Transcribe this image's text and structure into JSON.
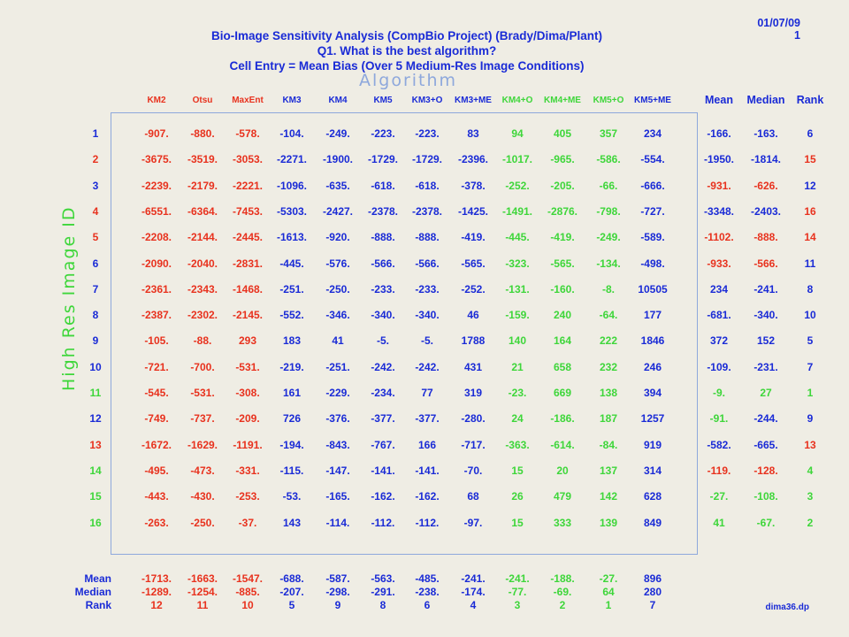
{
  "header": {
    "date": "01/07/09",
    "page": "1",
    "title_lines": [
      "Bio-Image Sensitivity Analysis (CompBio Project) (Brady/Dima/Plant)",
      "Q1. What is the best algorithm?",
      "Cell Entry = Mean Bias (Over 5 Medium-Res Image Conditions)"
    ],
    "top_axis": "Algorithm",
    "left_axis": "High Res Image ID"
  },
  "colors": {
    "blue": "#1a2bd6",
    "red": "#e8321e",
    "green": "#3ed63a",
    "frame": "#8ea8dc"
  },
  "columns": [
    {
      "label": "KM2",
      "color": "red"
    },
    {
      "label": "Otsu",
      "color": "red"
    },
    {
      "label": "MaxEnt",
      "color": "red"
    },
    {
      "label": "KM3",
      "color": "blue"
    },
    {
      "label": "KM4",
      "color": "blue"
    },
    {
      "label": "KM5",
      "color": "blue"
    },
    {
      "label": "KM3+O",
      "color": "blue"
    },
    {
      "label": "KM3+ME",
      "color": "blue"
    },
    {
      "label": "KM4+O",
      "color": "green"
    },
    {
      "label": "KM4+ME",
      "color": "green"
    },
    {
      "label": "KM5+O",
      "color": "green"
    },
    {
      "label": "KM5+ME",
      "color": "blue"
    }
  ],
  "summary_columns": [
    "Mean",
    "Median",
    "Rank"
  ],
  "rows": [
    {
      "id": "1",
      "id_color": "blue",
      "cells": [
        [
          "-907.",
          "red"
        ],
        [
          "-880.",
          "red"
        ],
        [
          "-578.",
          "red"
        ],
        [
          "-104.",
          "blue"
        ],
        [
          "-249.",
          "blue"
        ],
        [
          "-223.",
          "blue"
        ],
        [
          "-223.",
          "blue"
        ],
        [
          "83",
          "blue"
        ],
        [
          "94",
          "green"
        ],
        [
          "405",
          "green"
        ],
        [
          "357",
          "green"
        ],
        [
          "234",
          "blue"
        ]
      ],
      "mean": [
        "-166.",
        "blue"
      ],
      "median": [
        "-163.",
        "blue"
      ],
      "rank": [
        "6",
        "blue"
      ]
    },
    {
      "id": "2",
      "id_color": "red",
      "cells": [
        [
          "-3675.",
          "red"
        ],
        [
          "-3519.",
          "red"
        ],
        [
          "-3053.",
          "red"
        ],
        [
          "-2271.",
          "blue"
        ],
        [
          "-1900.",
          "blue"
        ],
        [
          "-1729.",
          "blue"
        ],
        [
          "-1729.",
          "blue"
        ],
        [
          "-2396.",
          "blue"
        ],
        [
          "-1017.",
          "green"
        ],
        [
          "-965.",
          "green"
        ],
        [
          "-586.",
          "green"
        ],
        [
          "-554.",
          "blue"
        ]
      ],
      "mean": [
        "-1950.",
        "blue"
      ],
      "median": [
        "-1814.",
        "blue"
      ],
      "rank": [
        "15",
        "red"
      ]
    },
    {
      "id": "3",
      "id_color": "blue",
      "cells": [
        [
          "-2239.",
          "red"
        ],
        [
          "-2179.",
          "red"
        ],
        [
          "-2221.",
          "red"
        ],
        [
          "-1096.",
          "blue"
        ],
        [
          "-635.",
          "blue"
        ],
        [
          "-618.",
          "blue"
        ],
        [
          "-618.",
          "blue"
        ],
        [
          "-378.",
          "blue"
        ],
        [
          "-252.",
          "green"
        ],
        [
          "-205.",
          "green"
        ],
        [
          "-66.",
          "green"
        ],
        [
          "-666.",
          "blue"
        ]
      ],
      "mean": [
        "-931.",
        "red"
      ],
      "median": [
        "-626.",
        "red"
      ],
      "rank": [
        "12",
        "blue"
      ]
    },
    {
      "id": "4",
      "id_color": "red",
      "cells": [
        [
          "-6551.",
          "red"
        ],
        [
          "-6364.",
          "red"
        ],
        [
          "-7453.",
          "red"
        ],
        [
          "-5303.",
          "blue"
        ],
        [
          "-2427.",
          "blue"
        ],
        [
          "-2378.",
          "blue"
        ],
        [
          "-2378.",
          "blue"
        ],
        [
          "-1425.",
          "blue"
        ],
        [
          "-1491.",
          "green"
        ],
        [
          "-2876.",
          "green"
        ],
        [
          "-798.",
          "green"
        ],
        [
          "-727.",
          "blue"
        ]
      ],
      "mean": [
        "-3348.",
        "blue"
      ],
      "median": [
        "-2403.",
        "blue"
      ],
      "rank": [
        "16",
        "red"
      ]
    },
    {
      "id": "5",
      "id_color": "red",
      "cells": [
        [
          "-2208.",
          "red"
        ],
        [
          "-2144.",
          "red"
        ],
        [
          "-2445.",
          "red"
        ],
        [
          "-1613.",
          "blue"
        ],
        [
          "-920.",
          "blue"
        ],
        [
          "-888.",
          "blue"
        ],
        [
          "-888.",
          "blue"
        ],
        [
          "-419.",
          "blue"
        ],
        [
          "-445.",
          "green"
        ],
        [
          "-419.",
          "green"
        ],
        [
          "-249.",
          "green"
        ],
        [
          "-589.",
          "blue"
        ]
      ],
      "mean": [
        "-1102.",
        "red"
      ],
      "median": [
        "-888.",
        "red"
      ],
      "rank": [
        "14",
        "red"
      ]
    },
    {
      "id": "6",
      "id_color": "blue",
      "cells": [
        [
          "-2090.",
          "red"
        ],
        [
          "-2040.",
          "red"
        ],
        [
          "-2831.",
          "red"
        ],
        [
          "-445.",
          "blue"
        ],
        [
          "-576.",
          "blue"
        ],
        [
          "-566.",
          "blue"
        ],
        [
          "-566.",
          "blue"
        ],
        [
          "-565.",
          "blue"
        ],
        [
          "-323.",
          "green"
        ],
        [
          "-565.",
          "green"
        ],
        [
          "-134.",
          "green"
        ],
        [
          "-498.",
          "blue"
        ]
      ],
      "mean": [
        "-933.",
        "red"
      ],
      "median": [
        "-566.",
        "red"
      ],
      "rank": [
        "11",
        "blue"
      ]
    },
    {
      "id": "7",
      "id_color": "blue",
      "cells": [
        [
          "-2361.",
          "red"
        ],
        [
          "-2343.",
          "red"
        ],
        [
          "-1468.",
          "red"
        ],
        [
          "-251.",
          "blue"
        ],
        [
          "-250.",
          "blue"
        ],
        [
          "-233.",
          "blue"
        ],
        [
          "-233.",
          "blue"
        ],
        [
          "-252.",
          "blue"
        ],
        [
          "-131.",
          "green"
        ],
        [
          "-160.",
          "green"
        ],
        [
          "-8.",
          "green"
        ],
        [
          "10505",
          "blue"
        ]
      ],
      "mean": [
        "234",
        "blue"
      ],
      "median": [
        "-241.",
        "blue"
      ],
      "rank": [
        "8",
        "blue"
      ]
    },
    {
      "id": "8",
      "id_color": "blue",
      "cells": [
        [
          "-2387.",
          "red"
        ],
        [
          "-2302.",
          "red"
        ],
        [
          "-2145.",
          "red"
        ],
        [
          "-552.",
          "blue"
        ],
        [
          "-346.",
          "blue"
        ],
        [
          "-340.",
          "blue"
        ],
        [
          "-340.",
          "blue"
        ],
        [
          "46",
          "blue"
        ],
        [
          "-159.",
          "green"
        ],
        [
          "240",
          "green"
        ],
        [
          "-64.",
          "green"
        ],
        [
          "177",
          "blue"
        ]
      ],
      "mean": [
        "-681.",
        "blue"
      ],
      "median": [
        "-340.",
        "blue"
      ],
      "rank": [
        "10",
        "blue"
      ]
    },
    {
      "id": "9",
      "id_color": "blue",
      "cells": [
        [
          "-105.",
          "red"
        ],
        [
          "-88.",
          "red"
        ],
        [
          "293",
          "red"
        ],
        [
          "183",
          "blue"
        ],
        [
          "41",
          "blue"
        ],
        [
          "-5.",
          "blue"
        ],
        [
          "-5.",
          "blue"
        ],
        [
          "1788",
          "blue"
        ],
        [
          "140",
          "green"
        ],
        [
          "164",
          "green"
        ],
        [
          "222",
          "green"
        ],
        [
          "1846",
          "blue"
        ]
      ],
      "mean": [
        "372",
        "blue"
      ],
      "median": [
        "152",
        "blue"
      ],
      "rank": [
        "5",
        "blue"
      ]
    },
    {
      "id": "10",
      "id_color": "blue",
      "cells": [
        [
          "-721.",
          "red"
        ],
        [
          "-700.",
          "red"
        ],
        [
          "-531.",
          "red"
        ],
        [
          "-219.",
          "blue"
        ],
        [
          "-251.",
          "blue"
        ],
        [
          "-242.",
          "blue"
        ],
        [
          "-242.",
          "blue"
        ],
        [
          "431",
          "blue"
        ],
        [
          "21",
          "green"
        ],
        [
          "658",
          "green"
        ],
        [
          "232",
          "green"
        ],
        [
          "246",
          "blue"
        ]
      ],
      "mean": [
        "-109.",
        "blue"
      ],
      "median": [
        "-231.",
        "blue"
      ],
      "rank": [
        "7",
        "blue"
      ]
    },
    {
      "id": "11",
      "id_color": "green",
      "cells": [
        [
          "-545.",
          "red"
        ],
        [
          "-531.",
          "red"
        ],
        [
          "-308.",
          "red"
        ],
        [
          "161",
          "blue"
        ],
        [
          "-229.",
          "blue"
        ],
        [
          "-234.",
          "blue"
        ],
        [
          "77",
          "blue"
        ],
        [
          "319",
          "blue"
        ],
        [
          "-23.",
          "green"
        ],
        [
          "669",
          "green"
        ],
        [
          "138",
          "green"
        ],
        [
          "394",
          "blue"
        ]
      ],
      "mean": [
        "-9.",
        "green"
      ],
      "median": [
        "27",
        "green"
      ],
      "rank": [
        "1",
        "green"
      ]
    },
    {
      "id": "12",
      "id_color": "blue",
      "cells": [
        [
          "-749.",
          "red"
        ],
        [
          "-737.",
          "red"
        ],
        [
          "-209.",
          "red"
        ],
        [
          "726",
          "blue"
        ],
        [
          "-376.",
          "blue"
        ],
        [
          "-377.",
          "blue"
        ],
        [
          "-377.",
          "blue"
        ],
        [
          "-280.",
          "blue"
        ],
        [
          "24",
          "green"
        ],
        [
          "-186.",
          "green"
        ],
        [
          "187",
          "green"
        ],
        [
          "1257",
          "blue"
        ]
      ],
      "mean": [
        "-91.",
        "green"
      ],
      "median": [
        "-244.",
        "blue"
      ],
      "rank": [
        "9",
        "blue"
      ]
    },
    {
      "id": "13",
      "id_color": "red",
      "cells": [
        [
          "-1672.",
          "red"
        ],
        [
          "-1629.",
          "red"
        ],
        [
          "-1191.",
          "red"
        ],
        [
          "-194.",
          "blue"
        ],
        [
          "-843.",
          "blue"
        ],
        [
          "-767.",
          "blue"
        ],
        [
          "166",
          "blue"
        ],
        [
          "-717.",
          "blue"
        ],
        [
          "-363.",
          "green"
        ],
        [
          "-614.",
          "green"
        ],
        [
          "-84.",
          "green"
        ],
        [
          "919",
          "blue"
        ]
      ],
      "mean": [
        "-582.",
        "blue"
      ],
      "median": [
        "-665.",
        "blue"
      ],
      "rank": [
        "13",
        "red"
      ]
    },
    {
      "id": "14",
      "id_color": "green",
      "cells": [
        [
          "-495.",
          "red"
        ],
        [
          "-473.",
          "red"
        ],
        [
          "-331.",
          "red"
        ],
        [
          "-115.",
          "blue"
        ],
        [
          "-147.",
          "blue"
        ],
        [
          "-141.",
          "blue"
        ],
        [
          "-141.",
          "blue"
        ],
        [
          "-70.",
          "blue"
        ],
        [
          "15",
          "green"
        ],
        [
          "20",
          "green"
        ],
        [
          "137",
          "green"
        ],
        [
          "314",
          "blue"
        ]
      ],
      "mean": [
        "-119.",
        "red"
      ],
      "median": [
        "-128.",
        "red"
      ],
      "rank": [
        "4",
        "green"
      ]
    },
    {
      "id": "15",
      "id_color": "green",
      "cells": [
        [
          "-443.",
          "red"
        ],
        [
          "-430.",
          "red"
        ],
        [
          "-253.",
          "red"
        ],
        [
          "-53.",
          "blue"
        ],
        [
          "-165.",
          "blue"
        ],
        [
          "-162.",
          "blue"
        ],
        [
          "-162.",
          "blue"
        ],
        [
          "68",
          "blue"
        ],
        [
          "26",
          "green"
        ],
        [
          "479",
          "green"
        ],
        [
          "142",
          "green"
        ],
        [
          "628",
          "blue"
        ]
      ],
      "mean": [
        "-27.",
        "green"
      ],
      "median": [
        "-108.",
        "green"
      ],
      "rank": [
        "3",
        "green"
      ]
    },
    {
      "id": "16",
      "id_color": "green",
      "cells": [
        [
          "-263.",
          "red"
        ],
        [
          "-250.",
          "red"
        ],
        [
          "-37.",
          "red"
        ],
        [
          "143",
          "blue"
        ],
        [
          "-114.",
          "blue"
        ],
        [
          "-112.",
          "blue"
        ],
        [
          "-112.",
          "blue"
        ],
        [
          "-97.",
          "blue"
        ],
        [
          "15",
          "green"
        ],
        [
          "333",
          "green"
        ],
        [
          "139",
          "green"
        ],
        [
          "849",
          "blue"
        ]
      ],
      "mean": [
        "41",
        "green"
      ],
      "median": [
        "-67.",
        "green"
      ],
      "rank": [
        "2",
        "green"
      ]
    }
  ],
  "footer_rows": [
    {
      "label": "Mean",
      "values": [
        [
          "-1713.",
          "red"
        ],
        [
          "-1663.",
          "red"
        ],
        [
          "-1547.",
          "red"
        ],
        [
          "-688.",
          "blue"
        ],
        [
          "-587.",
          "blue"
        ],
        [
          "-563.",
          "blue"
        ],
        [
          "-485.",
          "blue"
        ],
        [
          "-241.",
          "blue"
        ],
        [
          "-241.",
          "green"
        ],
        [
          "-188.",
          "green"
        ],
        [
          "-27.",
          "green"
        ],
        [
          "896",
          "blue"
        ]
      ]
    },
    {
      "label": "Median",
      "values": [
        [
          "-1289.",
          "red"
        ],
        [
          "-1254.",
          "red"
        ],
        [
          "-885.",
          "red"
        ],
        [
          "-207.",
          "blue"
        ],
        [
          "-298.",
          "blue"
        ],
        [
          "-291.",
          "blue"
        ],
        [
          "-238.",
          "blue"
        ],
        [
          "-174.",
          "blue"
        ],
        [
          "-77.",
          "green"
        ],
        [
          "-69.",
          "green"
        ],
        [
          "64",
          "green"
        ],
        [
          "280",
          "blue"
        ]
      ]
    },
    {
      "label": "Rank",
      "values": [
        [
          "12",
          "red"
        ],
        [
          "11",
          "red"
        ],
        [
          "10",
          "red"
        ],
        [
          "5",
          "blue"
        ],
        [
          "9",
          "blue"
        ],
        [
          "8",
          "blue"
        ],
        [
          "6",
          "blue"
        ],
        [
          "4",
          "blue"
        ],
        [
          "3",
          "green"
        ],
        [
          "2",
          "green"
        ],
        [
          "1",
          "green"
        ],
        [
          "7",
          "blue"
        ]
      ]
    }
  ],
  "filename": "dima36.dp"
}
